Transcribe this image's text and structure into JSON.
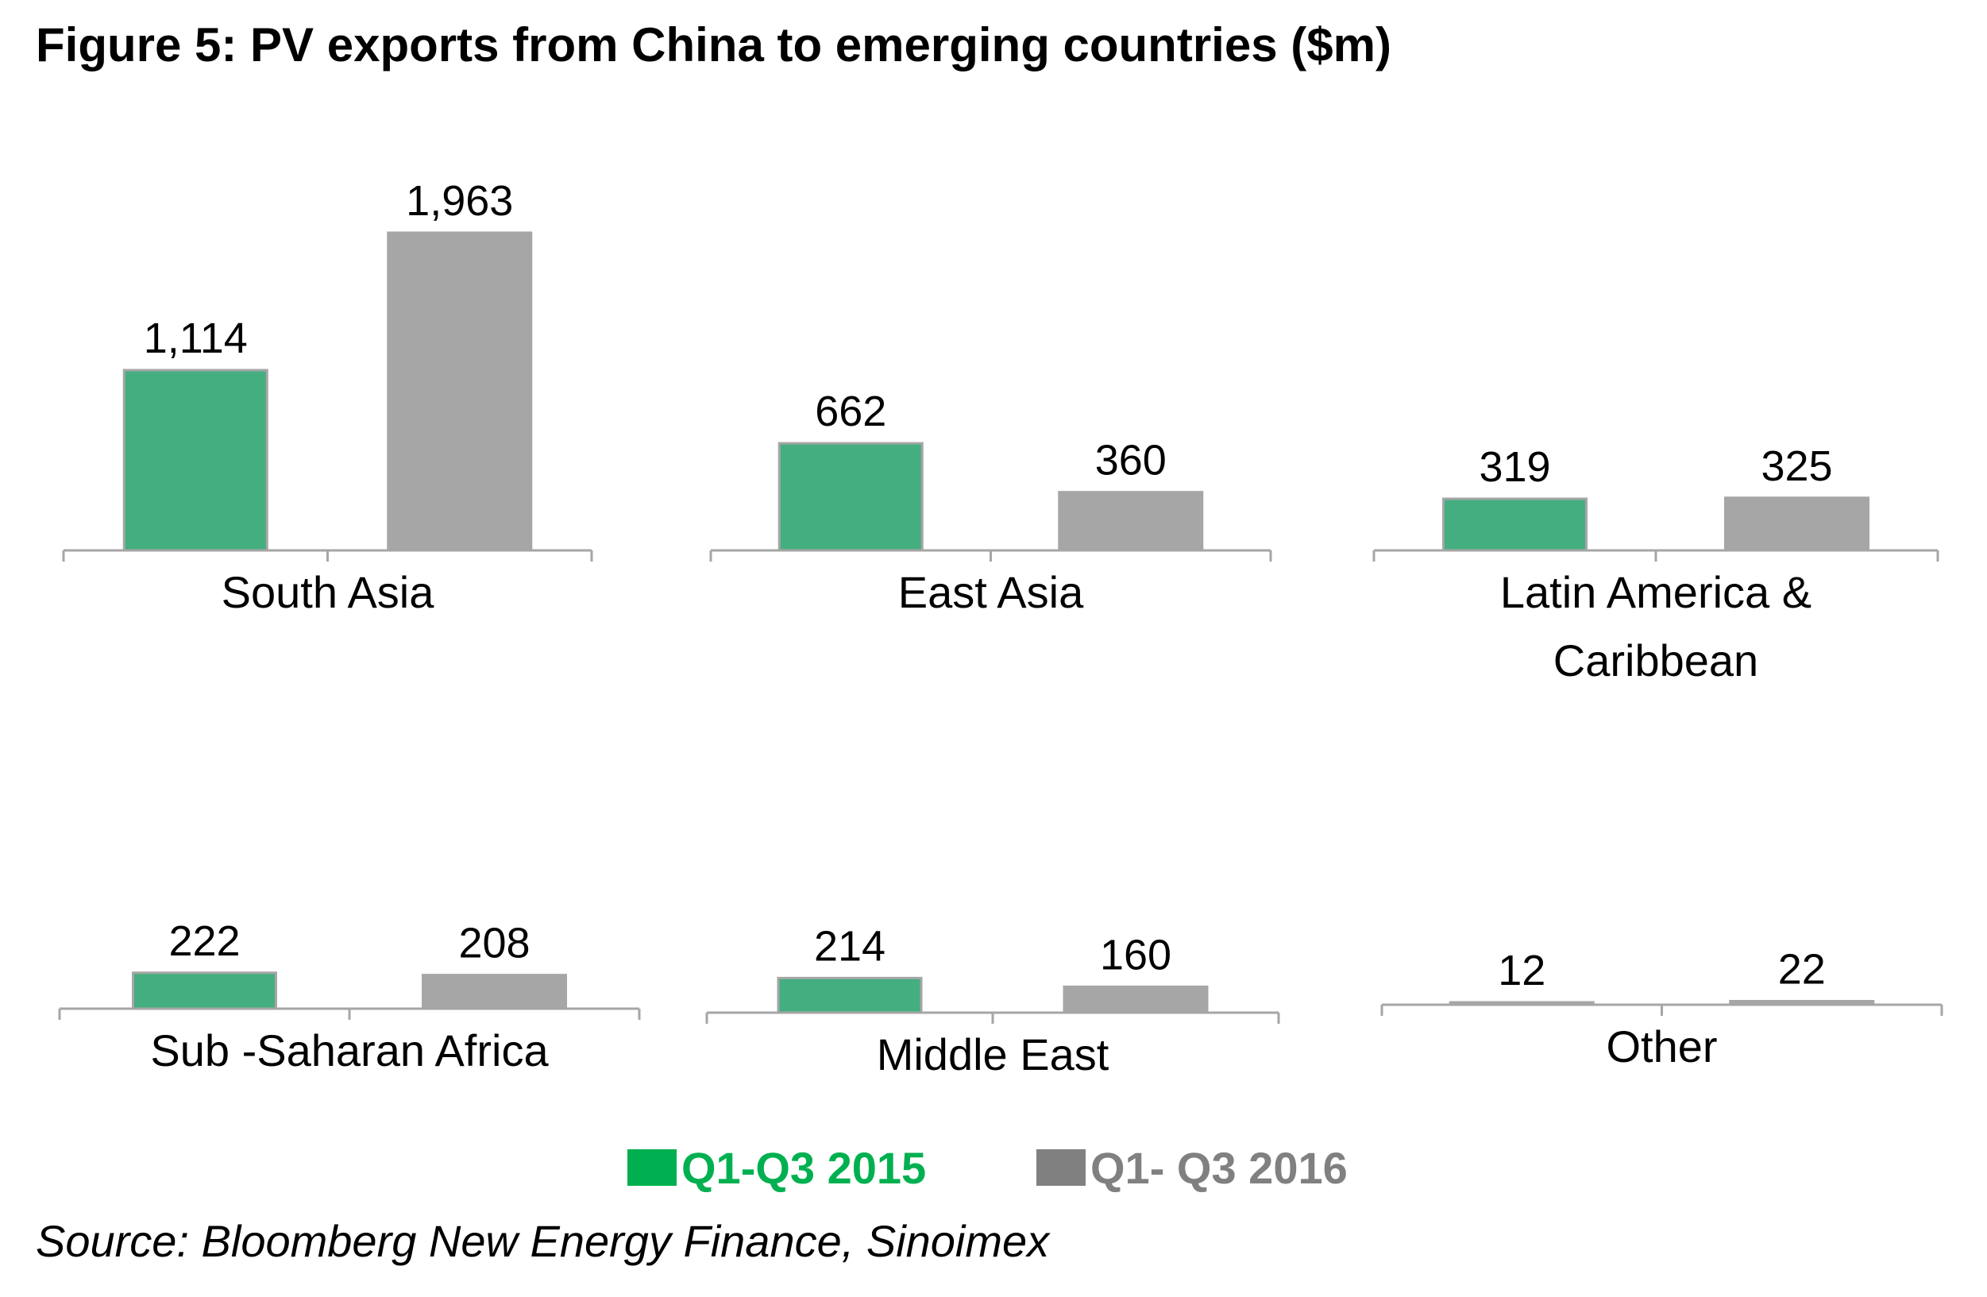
{
  "title": "Figure 5: PV exports from China to emerging countries ($m)",
  "source": "Source: Bloomberg New Energy Finance, Sinoimex",
  "colors": {
    "bar_2015": "#45ae80",
    "bar_2016": "#a6a6a6",
    "legend_2015": "#00b050",
    "legend_2016": "#808080",
    "axis": "#a6a6a6"
  },
  "legend": [
    {
      "label": "Q1-Q3 2015"
    },
    {
      "label": "Q1- Q3 2016"
    }
  ],
  "chart_data": {
    "type": "bar",
    "layout": "small-multiples",
    "series_order": [
      "Q1-Q3 2015",
      "Q1- Q3 2016"
    ],
    "panels": [
      {
        "category_lines": [
          "South Asia"
        ],
        "values": [
          1114,
          1963
        ],
        "labels": [
          "1,114",
          "1,963"
        ]
      },
      {
        "category_lines": [
          "East Asia"
        ],
        "values": [
          662,
          360
        ],
        "labels": [
          "662",
          "360"
        ]
      },
      {
        "category_lines": [
          "Latin America &",
          "Caribbean"
        ],
        "values": [
          319,
          325
        ],
        "labels": [
          "319",
          "325"
        ]
      },
      {
        "category_lines": [
          "Sub -Saharan Africa"
        ],
        "values": [
          222,
          208
        ],
        "labels": [
          "222",
          "208"
        ]
      },
      {
        "category_lines": [
          "Middle East"
        ],
        "values": [
          214,
          160
        ],
        "labels": [
          "214",
          "160"
        ]
      },
      {
        "category_lines": [
          "Other"
        ],
        "values": [
          12,
          22
        ],
        "labels": [
          "12",
          "22"
        ]
      }
    ]
  }
}
